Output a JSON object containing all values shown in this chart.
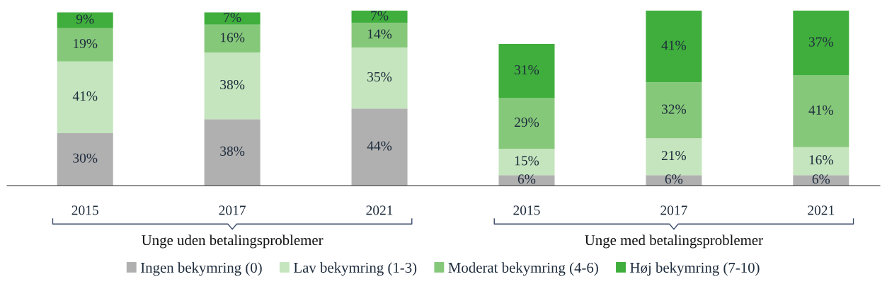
{
  "chart_data": {
    "type": "bar",
    "stacked": true,
    "categories": [
      "2015",
      "2017",
      "2021",
      "2015",
      "2017",
      "2021"
    ],
    "series": [
      {
        "name": "Ingen bekymring (0)",
        "color": "#b0b0b0",
        "values": [
          30,
          38,
          44,
          6,
          6,
          6
        ],
        "value_labels": [
          "30%",
          "38%",
          "44%",
          "6%",
          "6%",
          "6%"
        ]
      },
      {
        "name": "Lav bekymring (1-3)",
        "color": "#c4e5bd",
        "values": [
          41,
          38,
          35,
          15,
          21,
          16
        ],
        "value_labels": [
          "41%",
          "38%",
          "35%",
          "15%",
          "21%",
          "16%"
        ]
      },
      {
        "name": "Moderat bekymring (4-6)",
        "color": "#86c87a",
        "values": [
          19,
          16,
          14,
          29,
          32,
          41
        ],
        "value_labels": [
          "19%",
          "16%",
          "14%",
          "29%",
          "32%",
          "41%"
        ]
      },
      {
        "name": "Høj bekymring (7-10)",
        "color": "#3fae3c",
        "values": [
          9,
          7,
          7,
          31,
          41,
          37
        ],
        "value_labels": [
          "9%",
          "7%",
          "7%",
          "31%",
          "41%",
          "37%"
        ]
      }
    ],
    "ylim": [
      0,
      100
    ],
    "tick_labels": "x",
    "grid": false,
    "legend": "bottom",
    "annotations": [
      "Unge uden betalingsproblemer",
      "Unge med betalingsproblemer"
    ]
  }
}
